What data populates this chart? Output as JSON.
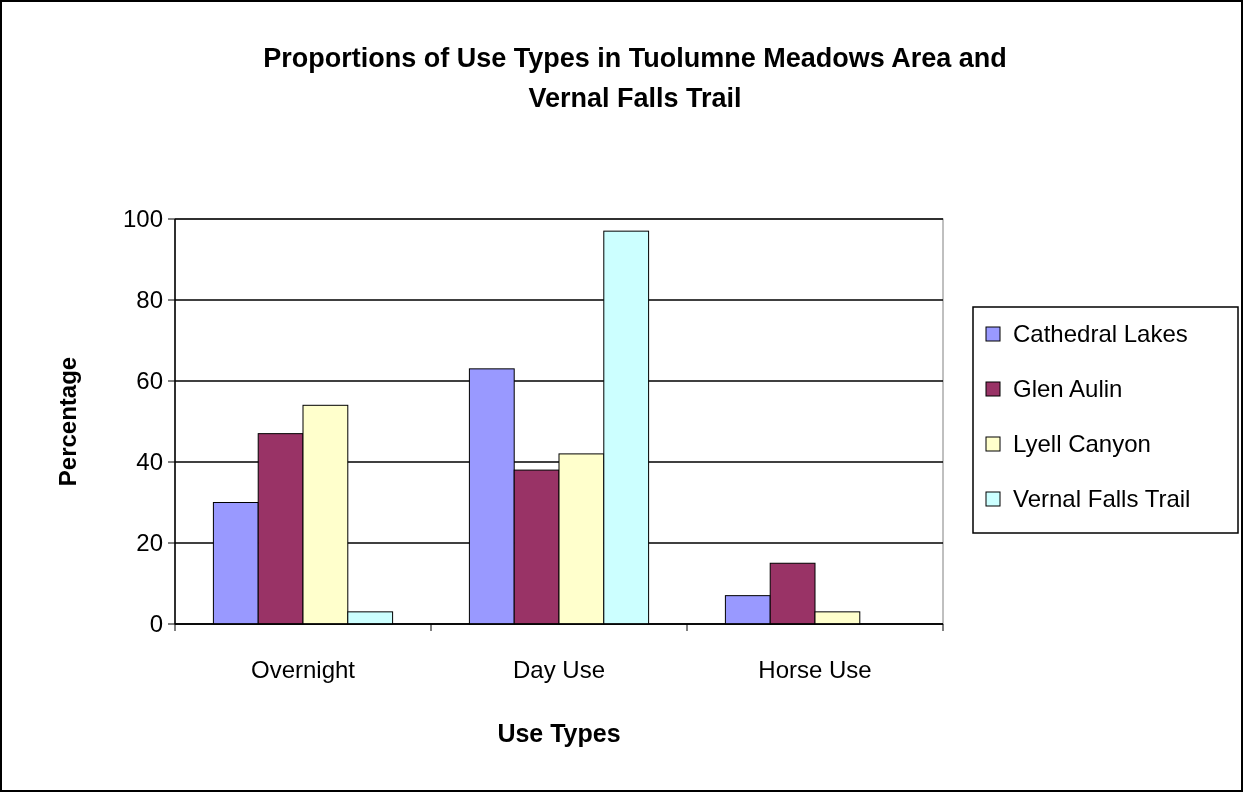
{
  "chart_data": {
    "type": "bar",
    "title": "Proportions of Use Types in Tuolumne Meadows Area and Vernal Falls Trail",
    "xlabel": "Use Types",
    "ylabel": "Percentage",
    "categories": [
      "Overnight",
      "Day Use",
      "Horse Use"
    ],
    "series": [
      {
        "name": "Cathedral Lakes",
        "color": "#9999ff",
        "values": [
          30,
          63,
          7
        ]
      },
      {
        "name": "Glen Aulin",
        "color": "#993366",
        "values": [
          47,
          38,
          15
        ]
      },
      {
        "name": "Lyell Canyon",
        "color": "#ffffcc",
        "values": [
          54,
          42,
          3
        ]
      },
      {
        "name": "Vernal Falls Trail",
        "color": "#ccffff",
        "values": [
          3,
          97,
          0
        ]
      }
    ],
    "ylim": [
      0,
      100
    ],
    "yticks": [
      0,
      20,
      40,
      60,
      80,
      100
    ],
    "grid": "y",
    "legend": "right"
  }
}
